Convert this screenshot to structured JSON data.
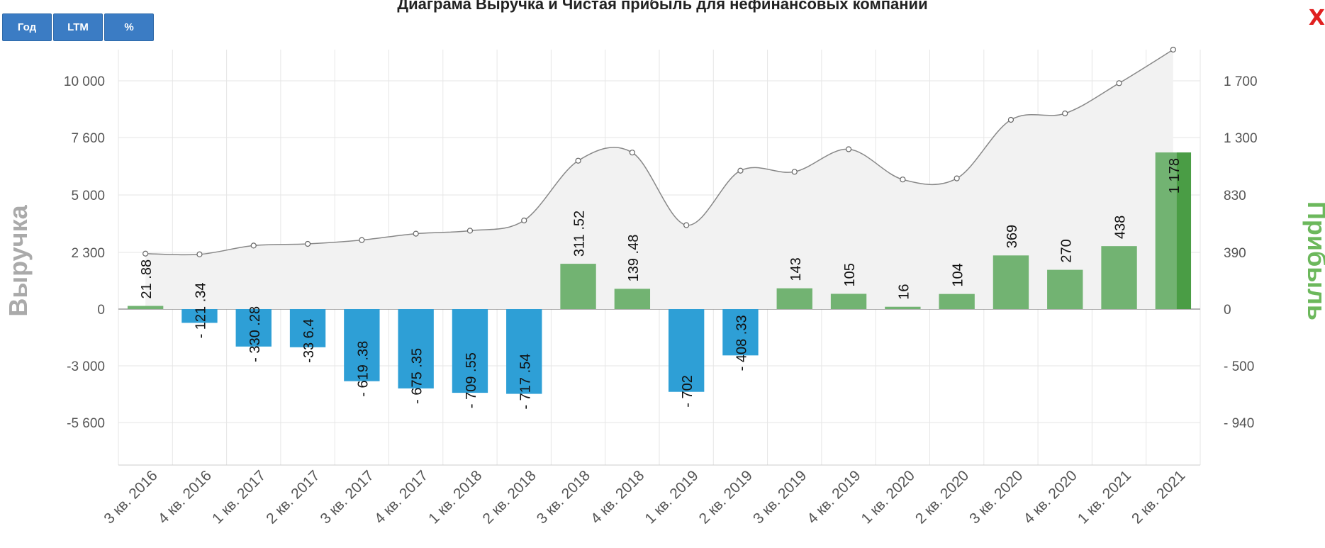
{
  "title": "Диаграма Выручка и Чистая прибыль для нефинансовых компаний",
  "toolbar": {
    "buttons": [
      "Год",
      "LTM",
      "%"
    ]
  },
  "close_label": "X",
  "colors": {
    "negative_bar": "#2e9fd6",
    "positive_bar": "#72b372",
    "last_bar": "#4a9d45",
    "line": "#888888",
    "area": "#f2f2f2",
    "left_axis_title": "#aaaaaa",
    "right_axis_title": "#6cb85c"
  },
  "chart_data": {
    "type": "bar",
    "categories": [
      "3 кв. 2016",
      "4 кв. 2016",
      "1 кв. 2017",
      "2 кв. 2017",
      "3 кв. 2017",
      "4 кв. 2017",
      "1 кв. 2018",
      "2 кв. 2018",
      "3 кв. 2018",
      "4 кв. 2018",
      "1 кв. 2019",
      "2 кв. 2019",
      "3 кв. 2019",
      "4 кв. 2019",
      "1 кв. 2020",
      "2 кв. 2020",
      "3 кв. 2020",
      "4 кв. 2020",
      "1 кв. 2021",
      "2 кв. 2021"
    ],
    "series": [
      {
        "name": "Выручка",
        "type": "area-line",
        "axis": "left",
        "values": [
          2250,
          2220,
          2620,
          2700,
          2880,
          3180,
          3320,
          3800,
          6550,
          6920,
          3580,
          6100,
          6050,
          7070,
          5700,
          5750,
          8350,
          8620,
          9900,
          11400
        ]
      },
      {
        "name": "Прибыль",
        "type": "bar",
        "axis": "right",
        "values": [
          21.88,
          -121.34,
          -330.28,
          -336.4,
          -619.38,
          -675.35,
          -709.55,
          -717.54,
          311.52,
          139.48,
          -702,
          -408.33,
          143,
          105,
          16,
          104,
          369,
          270,
          438,
          1178
        ],
        "labels": [
          "21 .88",
          "- 121 .34",
          "- 330 .28",
          "-33 6.4",
          "- 619 .38",
          "- 675 .35",
          "- 709 .55",
          "- 717 .54",
          "311 .52",
          "139 .48",
          "- 702",
          "- 408 .33",
          "143",
          "105",
          "16",
          "104",
          "369",
          "270",
          "438",
          "1 178"
        ]
      }
    ],
    "left_axis": {
      "title": "Выручка",
      "ticks": [
        "10 000",
        "7 600",
        "5 000",
        "2 300",
        "0",
        "-3 000",
        "-5 600"
      ]
    },
    "right_axis": {
      "title": "Прибыль",
      "ticks": [
        "1 700",
        "1 300",
        "830",
        "390",
        "0",
        "- 500",
        "- 940"
      ]
    },
    "grid": true
  }
}
